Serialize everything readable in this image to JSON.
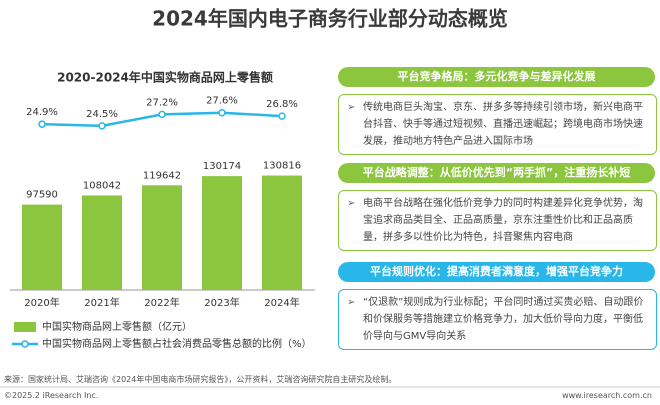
{
  "title": "2024年国内电子商务行业部分动态概览",
  "chart_data": {
    "type": "bar",
    "title": "2020-2024年中国实物商品网上零售额",
    "categories": [
      "2020年",
      "2021年",
      "2022年",
      "2023年",
      "2024年"
    ],
    "series": [
      {
        "name": "中国实物商品网上零售额（亿元）",
        "type": "bar",
        "color": "#8cc63f",
        "values": [
          97590,
          108042,
          119642,
          130174,
          130816
        ]
      },
      {
        "name": "中国实物商品网上零售额占社会消费品零售总额的比例（%）",
        "type": "line",
        "axis": "y2",
        "color": "#29b6e8",
        "values": [
          24.9,
          24.5,
          27.2,
          27.6,
          26.8
        ],
        "value_labels": [
          "24.9%",
          "24.5%",
          "27.2%",
          "27.6%",
          "26.8%"
        ]
      }
    ],
    "ylim": [
      0,
      160000
    ],
    "y2lim": [
      20,
      40
    ]
  },
  "sections": [
    {
      "header": "平台竞争格局：多元化竞争与差异化发展",
      "text": "传统电商巨头淘宝、京东、拼多多等持续引领市场，新兴电商平台抖音、快手等通过短视频、直播迅速崛起；跨境电商市场快速发展，推动地方特色产品进入国际市场",
      "color": "#8cc63f"
    },
    {
      "header": "平台战略调整：从低价优先到“两手抓”，注重扬长补短",
      "text": "电商平台战略在强化低价竞争力的同时构建差异化竞争优势，淘宝追求商品类目全、正品高质量，京东注重性价比和正品高质量，拼多多以性价比为特色，抖音聚焦内容电商",
      "color": "#8cc63f"
    },
    {
      "header": "平台规则优化：提高消费者满意度，增强平台竞争力",
      "text": "“仅退款”规则成为行业标配；平台同时通过买贵必赔、自动跟价和价保服务等措施建立价格竞争力，加大低价导向力度，平衡低价导向与GMV导向关系",
      "color": "#29b6e8"
    }
  ],
  "footer": {
    "source": "来源：国家统计局、艾瑞咨询《2024年中国电商市场研究报告》，公开资料，艾瑞咨询研究院自主研究及绘制。",
    "copyright": "©2025.2 iResearch Inc.",
    "url": "www.iresearch.com.cn"
  }
}
